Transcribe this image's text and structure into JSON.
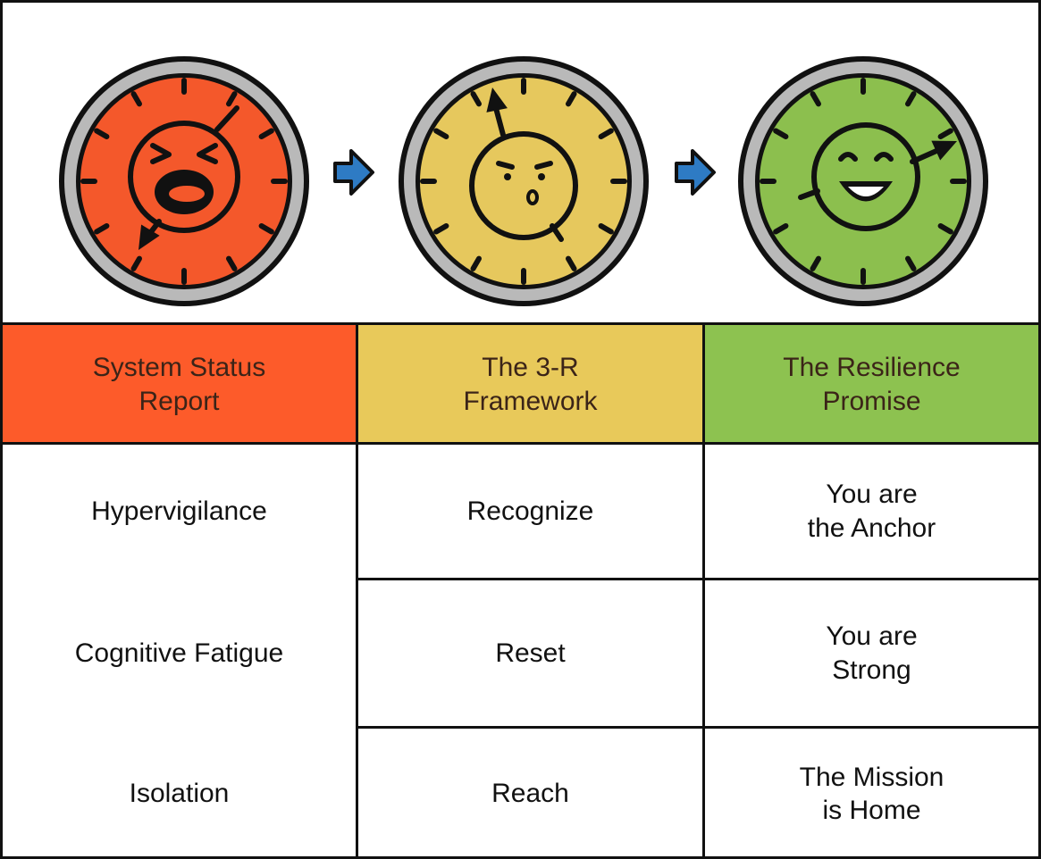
{
  "header_row": [
    "System Status\nReport",
    "The 3-R\nFramework",
    "The Resilience\nPromise"
  ],
  "column_1": [
    "Hypervigilance",
    "Cognitive Fatigue",
    "Isolation"
  ],
  "rows": [
    [
      "Recognize",
      "You are\nthe Anchor"
    ],
    [
      "Reset",
      "You are\nStrong"
    ],
    [
      "Reach",
      "The Mission\nis Home"
    ]
  ]
}
